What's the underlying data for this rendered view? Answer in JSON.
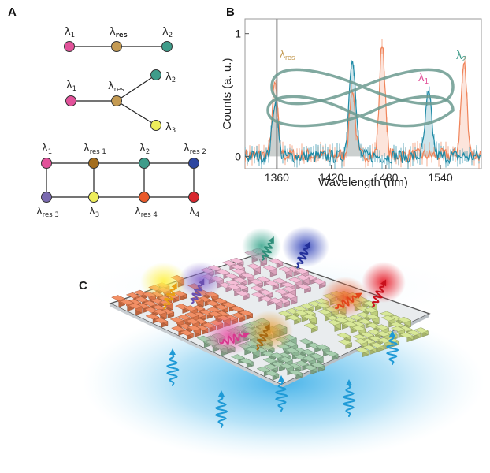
{
  "panels": {
    "a": "A",
    "b": "B",
    "c": "C"
  },
  "colors": {
    "pink": "#e2529a",
    "tan": "#c49a52",
    "teal": "#3f9c8a",
    "yellow": "#eded5a",
    "brown": "#a46e1e",
    "navy": "#2e47a0",
    "purple": "#7a6ab0",
    "orange": "#ea5a2a",
    "red": "#d8262e",
    "spectrum_orange": "#f0845a",
    "spectrum_blue": "#1e8aa6"
  },
  "graph_linear": {
    "n1": "λ",
    "n1_sub": "1",
    "nres": "λ",
    "nres_sub": "res",
    "n2": "λ",
    "n2_sub": "2"
  },
  "graph_branch": {
    "n1": "λ",
    "n1_sub": "1",
    "nres": "λ",
    "nres_sub": "res",
    "n2": "λ",
    "n2_sub": "2",
    "n3": "λ",
    "n3_sub": "3"
  },
  "graph_grid": {
    "n1": "λ",
    "n1_sub": "1",
    "r1": "λ",
    "r1_sub": "res 1",
    "n2": "λ",
    "n2_sub": "2",
    "r2": "λ",
    "r2_sub": "res 2",
    "r3": "λ",
    "r3_sub": "res 3",
    "n3": "λ",
    "n3_sub": "3",
    "r4": "λ",
    "r4_sub": "res 4",
    "n4": "λ",
    "n4_sub": "4"
  },
  "chart_data": {
    "type": "line",
    "title": "",
    "xlabel": "Wavelength (nm)",
    "ylabel": "Counts (a. u.)",
    "xlim": [
      1325,
      1585
    ],
    "ylim": [
      -0.1,
      1.12
    ],
    "xticks": [
      1360,
      1420,
      1480,
      1540
    ],
    "yticks": [
      0,
      1
    ],
    "annotations": [
      {
        "text": "λ",
        "sub": "res",
        "color": "#c49a52"
      },
      {
        "text": "λ",
        "sub": "2",
        "color": "#3f9c8a"
      },
      {
        "text": "λ",
        "sub": "1",
        "color": "#e2529a"
      }
    ],
    "vertical_line_x": 1360,
    "series": [
      {
        "name": "orange spectrum",
        "color": "#f0845a",
        "peaks": [
          {
            "x": 1358,
            "height": 0.58,
            "width": 3
          },
          {
            "x": 1443,
            "height": 0.55,
            "width": 3
          },
          {
            "x": 1476,
            "height": 0.93,
            "width": 3
          },
          {
            "x": 1566,
            "height": 0.75,
            "width": 3.2
          }
        ]
      },
      {
        "name": "blue spectrum",
        "color": "#1e8aa6",
        "peaks": [
          {
            "x": 1358,
            "height": 0.45,
            "width": 3
          },
          {
            "x": 1443,
            "height": 0.83,
            "width": 3.5
          },
          {
            "x": 1527,
            "height": 0.5,
            "width": 3.5
          }
        ]
      }
    ]
  }
}
